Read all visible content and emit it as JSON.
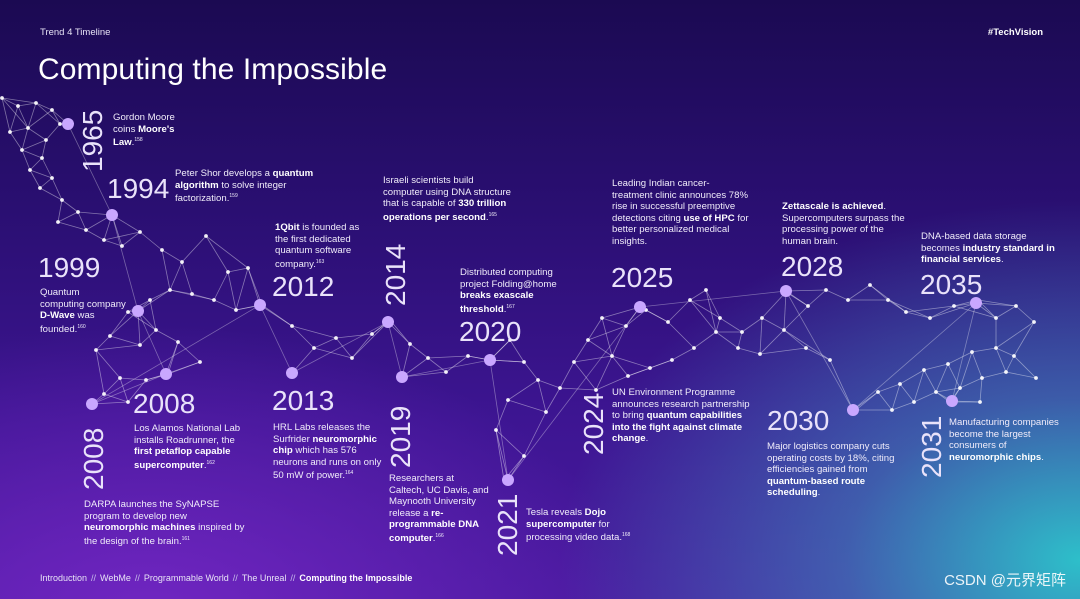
{
  "header": {
    "section": "Trend 4 Timeline",
    "hashtag": "#TechVision"
  },
  "title": "Computing the Impossible",
  "timeline": [
    {
      "year": "1965",
      "parts": [
        [
          "Gordon Moore coins ",
          false
        ],
        [
          "Moore's Law",
          true
        ],
        [
          ".",
          false
        ]
      ],
      "ref": "158"
    },
    {
      "year": "1994",
      "parts": [
        [
          "Peter Shor develops a ",
          false
        ],
        [
          "quantum algorithm",
          true
        ],
        [
          " to solve integer factorization.",
          false
        ]
      ],
      "ref": "159"
    },
    {
      "year": "1999",
      "parts": [
        [
          "Quantum computing company ",
          false
        ],
        [
          "D-Wave",
          true
        ],
        [
          " was founded.",
          false
        ]
      ],
      "ref": "160"
    },
    {
      "year": "2008",
      "parts": [
        [
          "Los Alamos National Lab installs Roadrunner, the ",
          false
        ],
        [
          "first petaflop capable supercomputer",
          true
        ],
        [
          ".",
          false
        ]
      ],
      "ref": "162"
    },
    {
      "year": "2008",
      "parts": [
        [
          "DARPA launches the SyNAPSE program to develop new ",
          false
        ],
        [
          "neuromorphic machines",
          true
        ],
        [
          " inspired by the design of the brain.",
          false
        ]
      ],
      "ref": "161"
    },
    {
      "year": "2012",
      "parts": [
        [
          "1Qbit",
          true
        ],
        [
          " is founded as the first dedicated quantum software company.",
          false
        ]
      ],
      "ref": "163"
    },
    {
      "year": "2013",
      "parts": [
        [
          "HRL Labs releases the Surfrider ",
          false
        ],
        [
          "neuromorphic chip",
          true
        ],
        [
          " which has 576 neurons and runs on only 50 mW of power.",
          false
        ]
      ],
      "ref": "164"
    },
    {
      "year": "2014",
      "parts": [
        [
          "Israeli scientists build computer using DNA structure that is capable of ",
          false
        ],
        [
          "330 trillion operations per second",
          true
        ],
        [
          ".",
          false
        ]
      ],
      "ref": "165"
    },
    {
      "year": "2019",
      "parts": [
        [
          "Researchers at Caltech, UC Davis, and Maynooth University release a ",
          false
        ],
        [
          "re-programmable DNA computer",
          true
        ],
        [
          ".",
          false
        ]
      ],
      "ref": "166"
    },
    {
      "year": "2020",
      "parts": [
        [
          "Distributed computing project Folding@home ",
          false
        ],
        [
          "breaks exascale threshold",
          true
        ],
        [
          ".",
          false
        ]
      ],
      "ref": "167"
    },
    {
      "year": "2021",
      "parts": [
        [
          "Tesla reveals ",
          false
        ],
        [
          "Dojo supercomputer",
          true
        ],
        [
          " for processing video data.",
          false
        ]
      ],
      "ref": "168"
    },
    {
      "year": "2024",
      "parts": [
        [
          "UN Environment Programme announces research partnership to bring ",
          false
        ],
        [
          "quantum capabilities into the fight against climate change",
          true
        ],
        [
          ".",
          false
        ]
      ],
      "ref": ""
    },
    {
      "year": "2025",
      "parts": [
        [
          "Leading Indian cancer-treatment clinic announces 78% rise in successful preemptive detections citing ",
          false
        ],
        [
          "use of HPC",
          true
        ],
        [
          " for better personalized medical insights.",
          false
        ]
      ],
      "ref": ""
    },
    {
      "year": "2028",
      "parts": [
        [
          "Zettascale is achieved",
          true
        ],
        [
          ". Supercomputers surpass the processing power of the human brain.",
          false
        ]
      ],
      "ref": ""
    },
    {
      "year": "2030",
      "parts": [
        [
          "Major logistics company cuts operating costs by 18%, citing efficiencies gained from ",
          false
        ],
        [
          "quantum-based route scheduling",
          true
        ],
        [
          ".",
          false
        ]
      ],
      "ref": ""
    },
    {
      "year": "2031",
      "parts": [
        [
          "Manufacturing companies become the largest consumers of ",
          false
        ],
        [
          "neuromorphic chips",
          true
        ],
        [
          ".",
          false
        ]
      ],
      "ref": ""
    },
    {
      "year": "2035",
      "parts": [
        [
          "DNA-based data storage becomes ",
          false
        ],
        [
          "industry standard in financial services",
          true
        ],
        [
          ".",
          false
        ]
      ],
      "ref": ""
    }
  ],
  "footer": {
    "items": [
      "Introduction",
      "WebMe",
      "Programmable World",
      "The Unreal",
      "Computing the Impossible"
    ],
    "separator": "//"
  },
  "watermark": "CSDN @元界矩阵",
  "colors": {
    "node": "#c9a7ff",
    "line": "#ffffff",
    "teal": "#2cc8cc"
  }
}
